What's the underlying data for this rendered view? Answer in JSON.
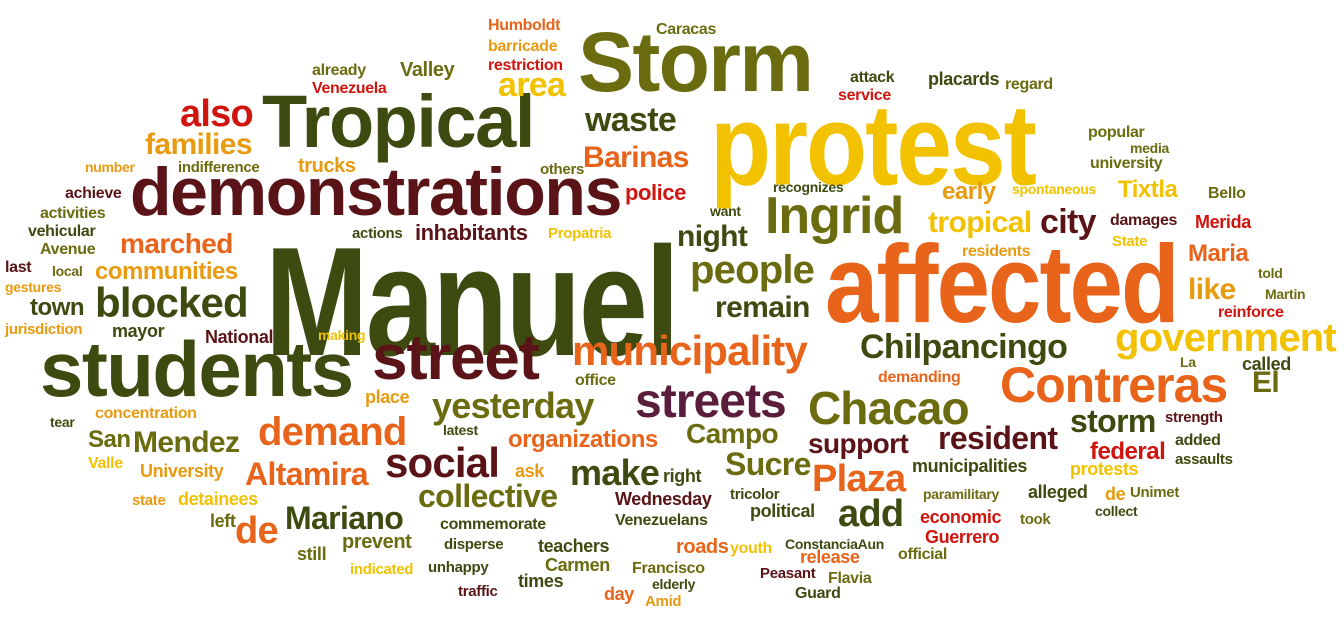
{
  "cloud": {
    "words": [
      {
        "text": "Manuel",
        "color": "#3d4a10"
      },
      {
        "text": "affected",
        "color": "#e8641a"
      },
      {
        "text": "protest",
        "color": "#f2c200"
      },
      {
        "text": "Storm",
        "color": "#6b6b10"
      },
      {
        "text": "Tropical",
        "color": "#3d4a10"
      },
      {
        "text": "demonstrations",
        "color": "#5a1418"
      },
      {
        "text": "students",
        "color": "#3d4a10"
      },
      {
        "text": "street",
        "color": "#5a1418"
      },
      {
        "text": "municipality",
        "color": "#e8641a"
      },
      {
        "text": "Ingrid",
        "color": "#6b6b10"
      },
      {
        "text": "Contreras",
        "color": "#e8641a"
      },
      {
        "text": "government",
        "color": "#f2c200"
      },
      {
        "text": "Chacao",
        "color": "#6b6b10"
      },
      {
        "text": "streets",
        "color": "#5a1e3c"
      },
      {
        "text": "blocked",
        "color": "#3d4a10"
      },
      {
        "text": "people",
        "color": "#6b6b10"
      },
      {
        "text": "Chilpancingo",
        "color": "#3d4a10"
      },
      {
        "text": "yesterday",
        "color": "#6b6b10"
      },
      {
        "text": "demand",
        "color": "#e8641a"
      },
      {
        "text": "social",
        "color": "#5a1418"
      },
      {
        "text": "collective",
        "color": "#6b6b10"
      },
      {
        "text": "Mariano",
        "color": "#3d4a10"
      },
      {
        "text": "make",
        "color": "#3d4a10"
      },
      {
        "text": "Plaza",
        "color": "#e8641a"
      },
      {
        "text": "resident",
        "color": "#5a1418"
      },
      {
        "text": "Sucre",
        "color": "#6b6b10"
      },
      {
        "text": "storm",
        "color": "#3d4a10"
      },
      {
        "text": "city",
        "color": "#5a1418"
      },
      {
        "text": "remain",
        "color": "#3d4a10"
      },
      {
        "text": "waste",
        "color": "#3d4a10"
      },
      {
        "text": "area",
        "color": "#f2c200"
      },
      {
        "text": "Barinas",
        "color": "#e8641a"
      },
      {
        "text": "also",
        "color": "#d0140e"
      },
      {
        "text": "families",
        "color": "#e89a10"
      },
      {
        "text": "night",
        "color": "#3d4a10"
      },
      {
        "text": "tropical",
        "color": "#f2c200"
      },
      {
        "text": "Altamira",
        "color": "#e8641a"
      },
      {
        "text": "Mendez",
        "color": "#6b6b10"
      },
      {
        "text": "de",
        "color": "#e8641a"
      },
      {
        "text": "add",
        "color": "#3d4a10"
      },
      {
        "text": "support",
        "color": "#5a1418"
      },
      {
        "text": "Campo",
        "color": "#6b6b10"
      },
      {
        "text": "organizations",
        "color": "#e8641a"
      },
      {
        "text": "communities",
        "color": "#e89a10"
      },
      {
        "text": "marched",
        "color": "#e8641a"
      },
      {
        "text": "town",
        "color": "#3d4a10"
      },
      {
        "text": "El",
        "color": "#6b6b10"
      },
      {
        "text": "like",
        "color": "#e89a10"
      },
      {
        "text": "police",
        "color": "#d0140e"
      },
      {
        "text": "inhabitants",
        "color": "#5a1418"
      },
      {
        "text": "San",
        "color": "#6b6b10"
      },
      {
        "text": "federal",
        "color": "#d0140e"
      },
      {
        "text": "Maria",
        "color": "#e8641a"
      },
      {
        "text": "early",
        "color": "#e89a10"
      },
      {
        "text": "Tixtla",
        "color": "#f2c200"
      },
      {
        "text": "Valley",
        "color": "#6b6b10"
      },
      {
        "text": "Humboldt",
        "color": "#e8641a"
      },
      {
        "text": "barricade",
        "color": "#e89a10"
      },
      {
        "text": "restriction",
        "color": "#d0140e"
      },
      {
        "text": "Caracas",
        "color": "#6b6b10"
      },
      {
        "text": "already",
        "color": "#6b6b10"
      },
      {
        "text": "Venezuela",
        "color": "#d0140e"
      },
      {
        "text": "attack",
        "color": "#3d4a10"
      },
      {
        "text": "service",
        "color": "#d0140e"
      },
      {
        "text": "placards",
        "color": "#3d4a10"
      },
      {
        "text": "regard",
        "color": "#6b6b10"
      },
      {
        "text": "popular",
        "color": "#6b6b10"
      },
      {
        "text": "media",
        "color": "#6b6b10"
      },
      {
        "text": "university",
        "color": "#6b6b10"
      },
      {
        "text": "number",
        "color": "#e89a10"
      },
      {
        "text": "indifference",
        "color": "#6b6b10"
      },
      {
        "text": "trucks",
        "color": "#e89a10"
      },
      {
        "text": "others",
        "color": "#6b6b10"
      },
      {
        "text": "achieve",
        "color": "#5a1418"
      },
      {
        "text": "activities",
        "color": "#6b6b10"
      },
      {
        "text": "vehicular",
        "color": "#3d4a10"
      },
      {
        "text": "Avenue",
        "color": "#6b6b10"
      },
      {
        "text": "last",
        "color": "#5a1418"
      },
      {
        "text": "local",
        "color": "#6b6b10"
      },
      {
        "text": "gestures",
        "color": "#e89a10"
      },
      {
        "text": "jurisdiction",
        "color": "#e89a10"
      },
      {
        "text": "mayor",
        "color": "#3d4a10"
      },
      {
        "text": "National",
        "color": "#5a1418"
      },
      {
        "text": "making",
        "color": "#f2c200"
      },
      {
        "text": "actions",
        "color": "#3d4a10"
      },
      {
        "text": "Propatria",
        "color": "#f2c200"
      },
      {
        "text": "recognizes",
        "color": "#3d4a10"
      },
      {
        "text": "want",
        "color": "#3d4a10"
      },
      {
        "text": "spontaneous",
        "color": "#f2c200"
      },
      {
        "text": "Bello",
        "color": "#6b6b10"
      },
      {
        "text": "damages",
        "color": "#5a1418"
      },
      {
        "text": "Merida",
        "color": "#d0140e"
      },
      {
        "text": "State",
        "color": "#f2c200"
      },
      {
        "text": "residents",
        "color": "#e89a10"
      },
      {
        "text": "told",
        "color": "#6b6b10"
      },
      {
        "text": "Martin",
        "color": "#6b6b10"
      },
      {
        "text": "reinforce",
        "color": "#d0140e"
      },
      {
        "text": "La",
        "color": "#6b6b10"
      },
      {
        "text": "called",
        "color": "#3d4a10"
      },
      {
        "text": "demanding",
        "color": "#e8641a"
      },
      {
        "text": "office",
        "color": "#6b6b10"
      },
      {
        "text": "place",
        "color": "#e89a10"
      },
      {
        "text": "concentration",
        "color": "#e89a10"
      },
      {
        "text": "tear",
        "color": "#3d4a10"
      },
      {
        "text": "latest",
        "color": "#3d4a10"
      },
      {
        "text": "Valle",
        "color": "#f2c200"
      },
      {
        "text": "University",
        "color": "#e89a10"
      },
      {
        "text": "state",
        "color": "#e89a10"
      },
      {
        "text": "detainees",
        "color": "#f2c200"
      },
      {
        "text": "left",
        "color": "#6b6b10"
      },
      {
        "text": "ask",
        "color": "#e89a10"
      },
      {
        "text": "right",
        "color": "#3d4a10"
      },
      {
        "text": "strength",
        "color": "#5a1418"
      },
      {
        "text": "added",
        "color": "#3d4a10"
      },
      {
        "text": "assaults",
        "color": "#3d4a10"
      },
      {
        "text": "protests",
        "color": "#f2c200"
      },
      {
        "text": "municipalities",
        "color": "#3d4a10"
      },
      {
        "text": "paramilitary",
        "color": "#6b6b10"
      },
      {
        "text": "alleged",
        "color": "#3d4a10"
      },
      {
        "text": "de",
        "color": "#e89a10"
      },
      {
        "text": "Unimet",
        "color": "#6b6b10"
      },
      {
        "text": "collect",
        "color": "#3d4a10"
      },
      {
        "text": "Wednesday",
        "color": "#5a1418"
      },
      {
        "text": "tricolor",
        "color": "#3d4a10"
      },
      {
        "text": "political",
        "color": "#3d4a10"
      },
      {
        "text": "economic",
        "color": "#d0140e"
      },
      {
        "text": "took",
        "color": "#6b6b10"
      },
      {
        "text": "commemorate",
        "color": "#3d4a10"
      },
      {
        "text": "Venezuelans",
        "color": "#3d4a10"
      },
      {
        "text": "Guerrero",
        "color": "#d0140e"
      },
      {
        "text": "still",
        "color": "#6b6b10"
      },
      {
        "text": "prevent",
        "color": "#6b6b10"
      },
      {
        "text": "disperse",
        "color": "#3d4a10"
      },
      {
        "text": "teachers",
        "color": "#3d4a10"
      },
      {
        "text": "roads",
        "color": "#e8641a"
      },
      {
        "text": "youth",
        "color": "#f2c200"
      },
      {
        "text": "ConstanciaAun",
        "color": "#3d4a10"
      },
      {
        "text": "release",
        "color": "#e8641a"
      },
      {
        "text": "official",
        "color": "#6b6b10"
      },
      {
        "text": "indicated",
        "color": "#f2c200"
      },
      {
        "text": "unhappy",
        "color": "#3d4a10"
      },
      {
        "text": "Carmen",
        "color": "#6b6b10"
      },
      {
        "text": "Francisco",
        "color": "#6b6b10"
      },
      {
        "text": "elderly",
        "color": "#3d4a10"
      },
      {
        "text": "Peasant",
        "color": "#5a1418"
      },
      {
        "text": "Flavia",
        "color": "#6b6b10"
      },
      {
        "text": "times",
        "color": "#3d4a10"
      },
      {
        "text": "traffic",
        "color": "#5a1418"
      },
      {
        "text": "day",
        "color": "#e8641a"
      },
      {
        "text": "Amid",
        "color": "#e89a10"
      },
      {
        "text": "Guard",
        "color": "#3d4a10"
      }
    ]
  }
}
